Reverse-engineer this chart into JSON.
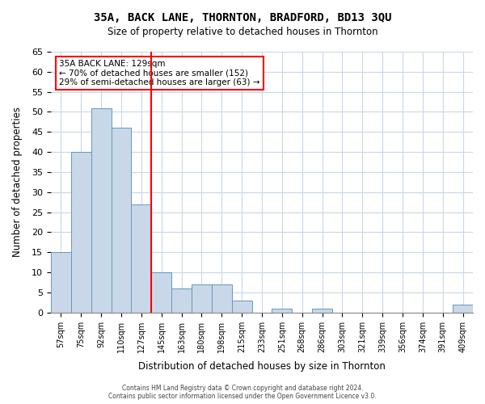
{
  "title": "35A, BACK LANE, THORNTON, BRADFORD, BD13 3QU",
  "subtitle": "Size of property relative to detached houses in Thornton",
  "xlabel": "Distribution of detached houses by size in Thornton",
  "ylabel": "Number of detached properties",
  "footer_line1": "Contains HM Land Registry data © Crown copyright and database right 2024.",
  "footer_line2": "Contains public sector information licensed under the Open Government Licence v3.0.",
  "bin_labels": [
    "57sqm",
    "75sqm",
    "92sqm",
    "110sqm",
    "127sqm",
    "145sqm",
    "163sqm",
    "180sqm",
    "198sqm",
    "215sqm",
    "233sqm",
    "251sqm",
    "268sqm",
    "286sqm",
    "303sqm",
    "321sqm",
    "339sqm",
    "356sqm",
    "374sqm",
    "391sqm",
    "409sqm"
  ],
  "bar_heights": [
    15,
    40,
    51,
    46,
    27,
    10,
    6,
    7,
    7,
    3,
    0,
    1,
    0,
    1,
    0,
    0,
    0,
    0,
    0,
    0,
    2
  ],
  "bar_color": "#c8d8e8",
  "bar_edge_color": "#6699bb",
  "vline_x_idx": 4,
  "vline_color": "red",
  "ylim": [
    0,
    65
  ],
  "yticks": [
    0,
    5,
    10,
    15,
    20,
    25,
    30,
    35,
    40,
    45,
    50,
    55,
    60,
    65
  ],
  "annotation_title": "35A BACK LANE: 129sqm",
  "annotation_line1": "← 70% of detached houses are smaller (152)",
  "annotation_line2": "29% of semi-detached houses are larger (63) →",
  "annotation_box_color": "white",
  "annotation_box_edge": "red",
  "bg_color": "white",
  "grid_color": "#c8d8e8"
}
